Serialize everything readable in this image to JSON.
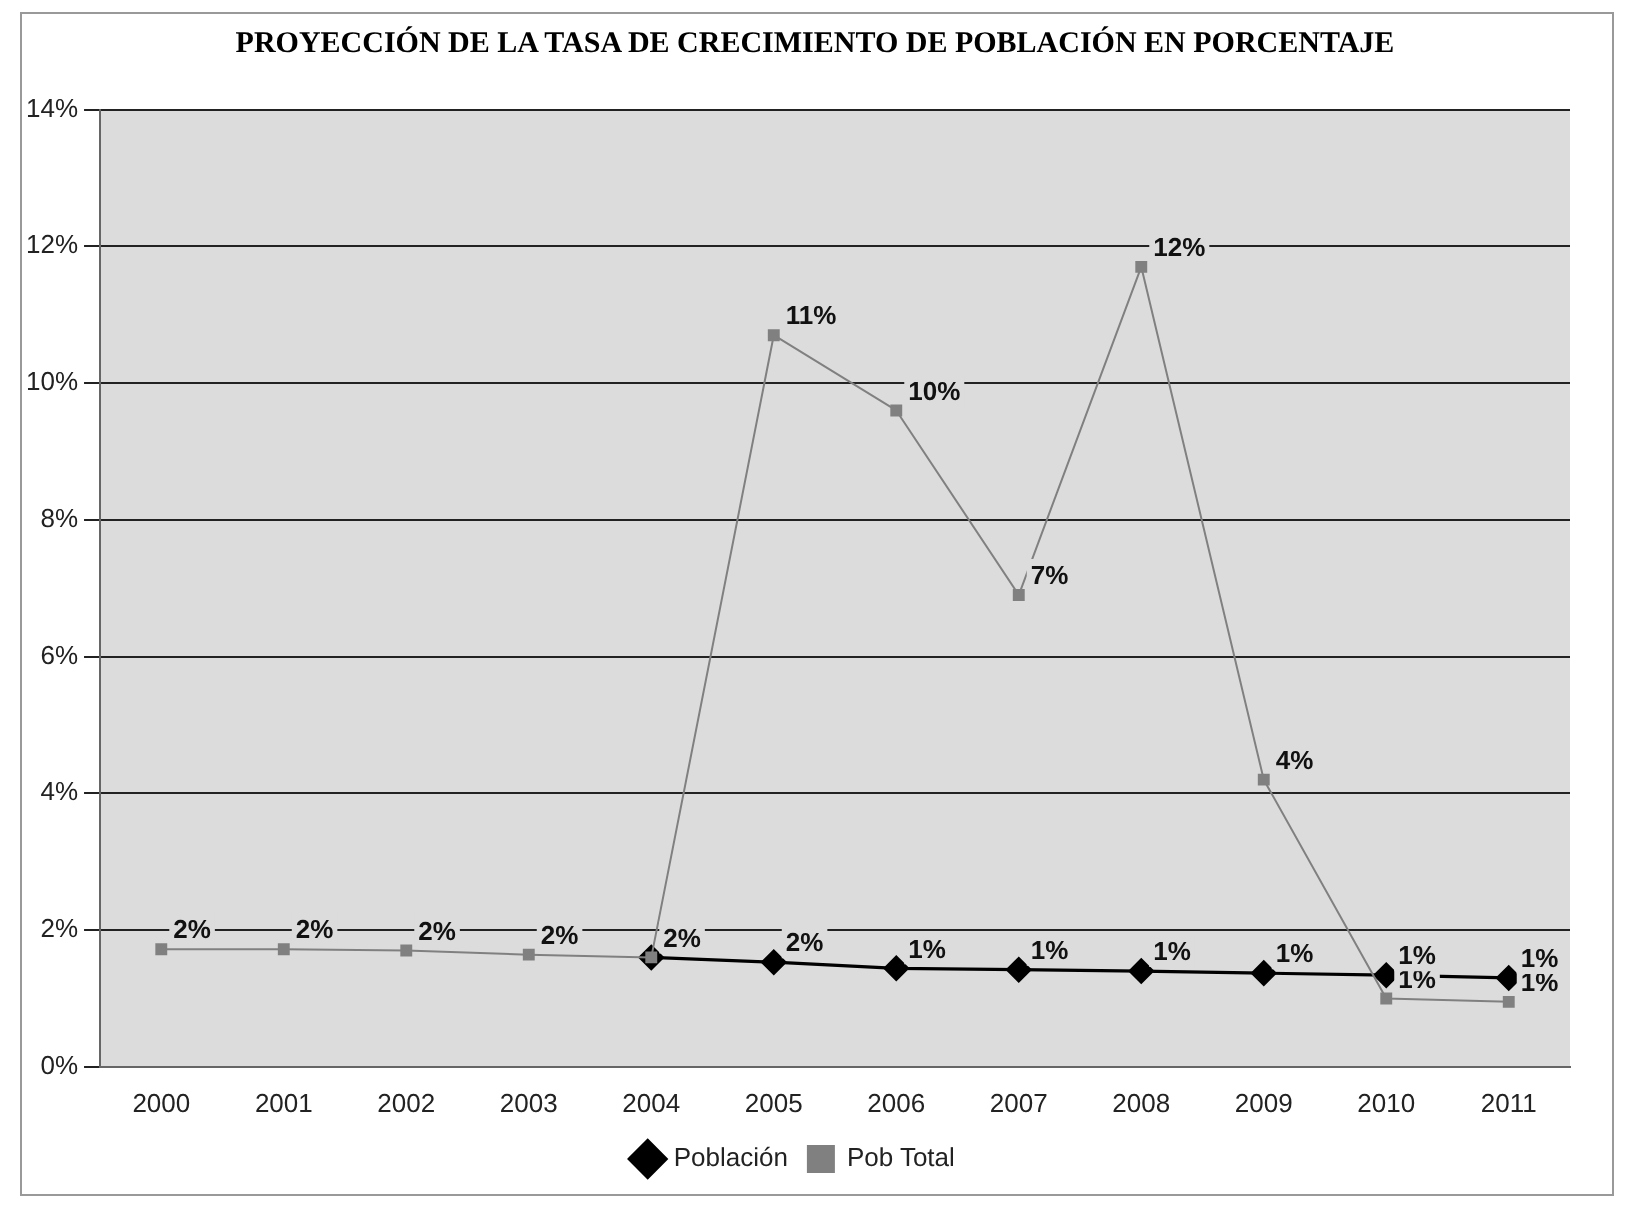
{
  "chart_data": {
    "type": "line",
    "title": "PROYECCIÓN DE LA TASA DE CRECIMIENTO DE POBLACIÓN EN PORCENTAJE",
    "categories": [
      "2000",
      "2001",
      "2002",
      "2003",
      "2004",
      "2005",
      "2006",
      "2007",
      "2008",
      "2009",
      "2010",
      "2011"
    ],
    "series": [
      {
        "name": "Población",
        "color": "#000000",
        "marker": "diamond",
        "values": [
          null,
          null,
          null,
          null,
          1.6,
          1.53,
          1.44,
          1.42,
          1.4,
          1.37,
          1.34,
          1.3
        ],
        "value_labels": [
          null,
          null,
          null,
          null,
          null,
          "2%",
          "1%",
          "1%",
          "1%",
          "1%",
          "1%",
          "1%"
        ]
      },
      {
        "name": "Pob Total",
        "color": "#808080",
        "marker": "square",
        "values": [
          1.72,
          1.72,
          1.7,
          1.64,
          1.6,
          10.7,
          9.6,
          6.9,
          11.7,
          4.2,
          1.0,
          0.95
        ],
        "value_labels": [
          "2%",
          "2%",
          "2%",
          "2%",
          "2%",
          "11%",
          "10%",
          "7%",
          "12%",
          "4%",
          "1%",
          "1%"
        ]
      }
    ],
    "ylim": [
      0,
      14
    ],
    "yticks": [
      {
        "value": 0,
        "label": "0%"
      },
      {
        "value": 2,
        "label": "2%"
      },
      {
        "value": 4,
        "label": "4%"
      },
      {
        "value": 6,
        "label": "6%"
      },
      {
        "value": 8,
        "label": "8%"
      },
      {
        "value": 10,
        "label": "10%"
      },
      {
        "value": 12,
        "label": "12%"
      },
      {
        "value": 14,
        "label": "14%"
      }
    ],
    "grid": "y",
    "legend": "bottom"
  }
}
